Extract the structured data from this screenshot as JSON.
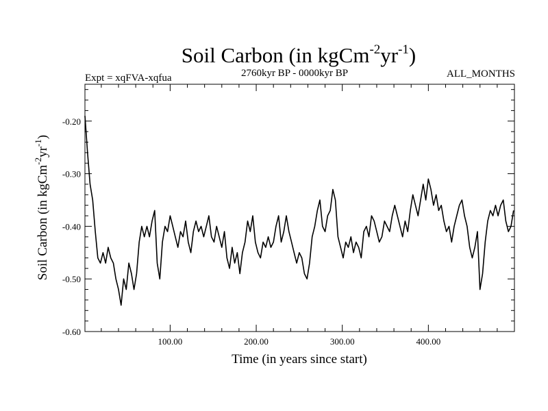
{
  "chart_data": {
    "type": "line",
    "title": "Soil Carbon (in kgCm",
    "title_exp1": "-2",
    "title_mid": "yr",
    "title_exp2": "-1",
    "title_end": ")",
    "subtitle_left": "Expt = xqFVA-xqfua",
    "subtitle_center": "2760kyr BP - 0000kyr BP",
    "subtitle_right": "ALL_MONTHS",
    "xlabel": "Time (in years since start)",
    "ylabel": "Soil Carbon (in kgCm",
    "ylabel_exp1": "-2",
    "ylabel_mid": "yr",
    "ylabel_exp2": "-1",
    "ylabel_end": ")",
    "xlim": [
      1,
      500
    ],
    "ylim": [
      -0.6,
      -0.13
    ],
    "x_ticks": [
      100,
      200,
      300,
      400
    ],
    "x_tick_labels": [
      "100.00",
      "200.00",
      "300.00",
      "400.00"
    ],
    "y_ticks": [
      -0.6,
      -0.5,
      -0.4,
      -0.3,
      -0.2
    ],
    "y_tick_labels": [
      "-0.60",
      "-0.50",
      "-0.40",
      "-0.30",
      "-0.20"
    ],
    "grid": false,
    "series": [
      {
        "name": "Soil Carbon",
        "x": [
          1,
          4,
          7,
          10,
          13,
          16,
          19,
          22,
          25,
          28,
          31,
          34,
          37,
          40,
          43,
          46,
          49,
          52,
          55,
          58,
          61,
          64,
          67,
          70,
          73,
          76,
          79,
          82,
          85,
          88,
          91,
          94,
          97,
          100,
          103,
          106,
          109,
          112,
          115,
          118,
          121,
          124,
          127,
          130,
          133,
          136,
          139,
          142,
          145,
          148,
          151,
          154,
          157,
          160,
          163,
          166,
          169,
          172,
          175,
          178,
          181,
          184,
          187,
          190,
          193,
          196,
          199,
          202,
          205,
          208,
          211,
          214,
          217,
          220,
          223,
          226,
          229,
          232,
          235,
          238,
          241,
          244,
          247,
          250,
          253,
          256,
          259,
          262,
          265,
          268,
          271,
          274,
          277,
          280,
          283,
          286,
          289,
          292,
          295,
          298,
          301,
          304,
          307,
          310,
          313,
          316,
          319,
          322,
          325,
          328,
          331,
          334,
          337,
          340,
          343,
          346,
          349,
          352,
          355,
          358,
          361,
          364,
          367,
          370,
          373,
          376,
          379,
          382,
          385,
          388,
          391,
          394,
          397,
          400,
          403,
          406,
          409,
          412,
          415,
          418,
          421,
          424,
          427,
          430,
          433,
          436,
          439,
          442,
          445,
          448,
          451,
          454,
          457,
          460,
          463,
          466,
          469,
          472,
          475,
          478,
          481,
          484,
          487,
          490,
          493,
          496,
          499
        ],
        "values": [
          -0.19,
          -0.26,
          -0.32,
          -0.35,
          -0.41,
          -0.46,
          -0.47,
          -0.45,
          -0.47,
          -0.44,
          -0.46,
          -0.47,
          -0.5,
          -0.52,
          -0.55,
          -0.5,
          -0.52,
          -0.47,
          -0.49,
          -0.52,
          -0.49,
          -0.43,
          -0.4,
          -0.42,
          -0.4,
          -0.42,
          -0.39,
          -0.37,
          -0.47,
          -0.5,
          -0.43,
          -0.4,
          -0.41,
          -0.38,
          -0.4,
          -0.42,
          -0.44,
          -0.41,
          -0.42,
          -0.39,
          -0.43,
          -0.45,
          -0.41,
          -0.39,
          -0.41,
          -0.4,
          -0.42,
          -0.4,
          -0.38,
          -0.42,
          -0.43,
          -0.4,
          -0.42,
          -0.44,
          -0.41,
          -0.46,
          -0.48,
          -0.44,
          -0.47,
          -0.45,
          -0.49,
          -0.45,
          -0.43,
          -0.39,
          -0.41,
          -0.38,
          -0.43,
          -0.45,
          -0.46,
          -0.43,
          -0.44,
          -0.42,
          -0.44,
          -0.43,
          -0.4,
          -0.38,
          -0.43,
          -0.41,
          -0.38,
          -0.41,
          -0.43,
          -0.45,
          -0.47,
          -0.45,
          -0.46,
          -0.49,
          -0.5,
          -0.47,
          -0.42,
          -0.4,
          -0.37,
          -0.35,
          -0.4,
          -0.41,
          -0.38,
          -0.37,
          -0.33,
          -0.35,
          -0.42,
          -0.44,
          -0.46,
          -0.43,
          -0.44,
          -0.42,
          -0.45,
          -0.43,
          -0.44,
          -0.46,
          -0.41,
          -0.4,
          -0.42,
          -0.38,
          -0.39,
          -0.41,
          -0.43,
          -0.42,
          -0.39,
          -0.4,
          -0.41,
          -0.38,
          -0.36,
          -0.38,
          -0.4,
          -0.42,
          -0.39,
          -0.41,
          -0.37,
          -0.34,
          -0.36,
          -0.38,
          -0.35,
          -0.32,
          -0.35,
          -0.31,
          -0.33,
          -0.36,
          -0.34,
          -0.37,
          -0.36,
          -0.39,
          -0.41,
          -0.4,
          -0.43,
          -0.4,
          -0.38,
          -0.36,
          -0.35,
          -0.38,
          -0.4,
          -0.44,
          -0.46,
          -0.44,
          -0.41,
          -0.52,
          -0.49,
          -0.43,
          -0.39,
          -0.37,
          -0.38,
          -0.36,
          -0.38,
          -0.36,
          -0.35,
          -0.39,
          -0.41,
          -0.4,
          -0.37
        ]
      }
    ]
  }
}
